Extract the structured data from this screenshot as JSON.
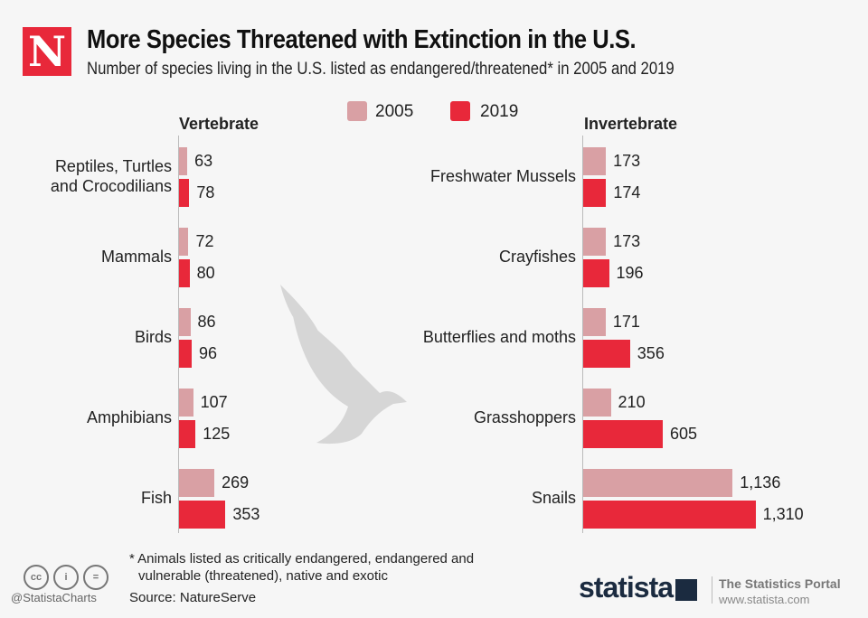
{
  "header": {
    "logo_letter": "N",
    "title": "More Species Threatened with Extinction in the U.S.",
    "subtitle": "Number of species living in the U.S. listed as endangered/threatened* in 2005 and 2019"
  },
  "colors": {
    "2005": "#d9a0a4",
    "2019": "#e8283a"
  },
  "chart_data": [
    {
      "type": "bar",
      "orientation": "horizontal",
      "title": "Vertebrate",
      "categories": [
        "Reptiles, Turtles and Crocodilians",
        "Mammals",
        "Birds",
        "Amphibians",
        "Fish"
      ],
      "series": [
        {
          "name": "2005",
          "values": [
            63,
            72,
            86,
            107,
            269
          ]
        },
        {
          "name": "2019",
          "values": [
            78,
            80,
            96,
            125,
            353
          ]
        }
      ]
    },
    {
      "type": "bar",
      "orientation": "horizontal",
      "title": "Invertebrate",
      "categories": [
        "Freshwater Mussels",
        "Crayfishes",
        "Butterflies and moths",
        "Grasshoppers",
        "Snails"
      ],
      "series": [
        {
          "name": "2005",
          "values": [
            173,
            173,
            171,
            210,
            1136
          ]
        },
        {
          "name": "2019",
          "values": [
            174,
            196,
            356,
            605,
            1310
          ]
        }
      ]
    }
  ],
  "legend": [
    "2005",
    "2019"
  ],
  "footer": {
    "note_line1": "* Animals listed as critically endangered, endangered and",
    "note_line2": "vulnerable (threatened), native and exotic",
    "source": "Source: NatureServe",
    "handle": "@StatistaCharts",
    "brand": "statista",
    "portal": "The Statistics Portal",
    "url": "www.statista.com",
    "license_icons": [
      "cc",
      "by",
      "nd"
    ]
  }
}
